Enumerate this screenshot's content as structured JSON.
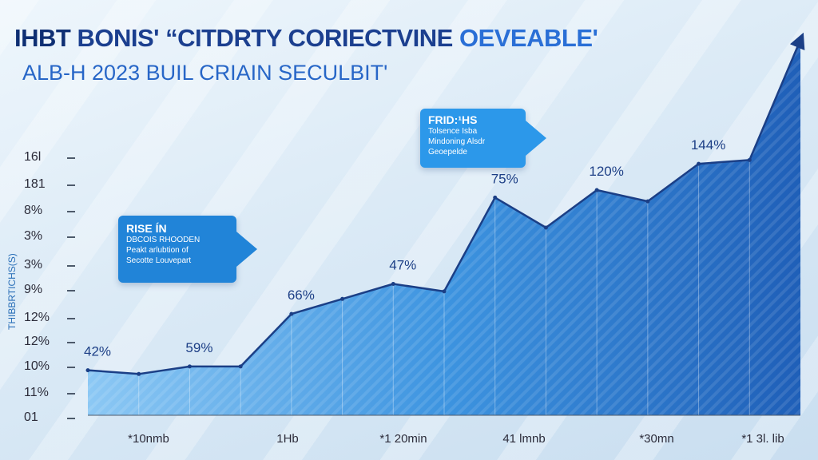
{
  "header": {
    "title_brand": "IHBT",
    "title_main": "BONIS' “CITDRTY CORIECTVINE",
    "title_accent": "OEVEABLE'",
    "subtitle": "ALB-H 2023 BUIL CRIAIN SECULBIT'"
  },
  "y_axis_label": "THIBBRTICHS(S)",
  "y_ticks": [
    "16l",
    "181",
    "8%",
    "3%",
    "3%",
    "9%",
    "12%",
    "12%",
    "10%",
    "11%",
    "01"
  ],
  "x_ticks": [
    "*10nmb",
    "1Hb",
    "*1 20min",
    "41 lmnb",
    "*30mn",
    "*1 3l. lib"
  ],
  "callouts": [
    {
      "title": "RISE ÍN",
      "lines": [
        "DBCOIS RHOODEN",
        "Peakt arlubtion of",
        "Secotte Louvepart"
      ]
    },
    {
      "title": "FRID:¹HS",
      "lines": [
        "Tolsence Isba",
        "Mindoning Alsdr",
        "Geoepelde"
      ]
    }
  ],
  "chart_data": {
    "type": "area",
    "title": "IHBT BONIS' “CITDRTY CORIECTVINE OEVEABLE'",
    "subtitle": "ALB-H 2023 BUIL CRIAIN SECULBIT'",
    "ylabel": "THIBBRTICHS(S)",
    "ylim": [
      0,
      100
    ],
    "x": [
      0,
      1,
      2,
      3,
      4,
      5,
      6,
      7,
      8,
      9,
      10,
      11,
      12,
      13,
      14
    ],
    "values": [
      12,
      11,
      13,
      13,
      27,
      31,
      35,
      33,
      58,
      50,
      60,
      57,
      67,
      68,
      100
    ],
    "data_labels": [
      {
        "text": "42%",
        "i": 0
      },
      {
        "text": "59%",
        "i": 2
      },
      {
        "text": "66%",
        "i": 4
      },
      {
        "text": "47%",
        "i": 6
      },
      {
        "text": "75%",
        "i": 8
      },
      {
        "text": "120%",
        "i": 10
      },
      {
        "text": "144%",
        "i": 12
      }
    ],
    "colors": {
      "light": "#8cc8f4",
      "mid": "#3d94e0",
      "dark": "#1f5fb8",
      "line": "#1b3f86"
    },
    "grid": false
  }
}
